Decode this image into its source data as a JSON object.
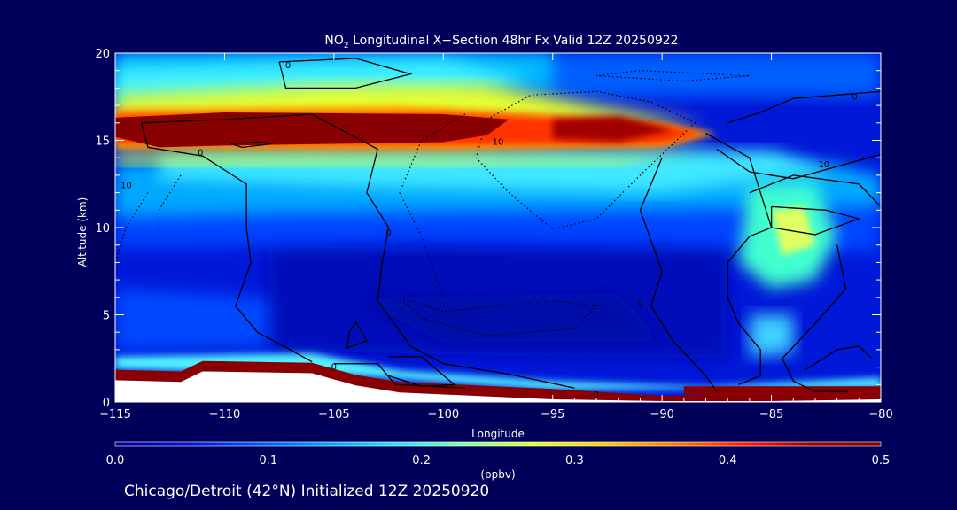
{
  "chart_data": {
    "type": "heatmap",
    "title_prefix": "NO",
    "title_sub": "2",
    "title_rest": " Longitudinal X−Section 48hr  Fx Valid 12Z 20250922",
    "subtitle": "Chicago/Detroit (42°N) Initialized 12Z 20250920",
    "xlabel": "Longitude",
    "ylabel": "Altitude (km)",
    "xlim": [
      -115,
      -80
    ],
    "ylim": [
      0,
      20
    ],
    "x_ticks": [
      -115,
      -110,
      -105,
      -100,
      -95,
      -90,
      -85,
      -80
    ],
    "x_tick_labels": [
      "−115",
      "−110",
      "−105",
      "−100",
      "−95",
      "−90",
      "−85",
      "−80"
    ],
    "y_ticks": [
      0,
      5,
      10,
      15,
      20
    ],
    "y_tick_labels": [
      "0",
      "5",
      "10",
      "15",
      "20"
    ],
    "colorbar": {
      "label": "(ppbv)",
      "range": [
        0.0,
        0.5
      ],
      "ticks": [
        0.0,
        0.1,
        0.2,
        0.3,
        0.4,
        0.5
      ],
      "tick_labels": [
        "0.0",
        "0.1",
        "0.2",
        "0.3",
        "0.4",
        "0.5"
      ],
      "colors": [
        "#000090",
        "#0010d8",
        "#0050ff",
        "#00a0ff",
        "#20e0ff",
        "#80ffa0",
        "#e0ff30",
        "#ffd000",
        "#ff8000",
        "#ff2000",
        "#a00000",
        "#800000"
      ]
    },
    "field": {
      "surface_km": [
        [
          -115,
          1.7
        ],
        [
          -112,
          1.6
        ],
        [
          -111,
          2.2
        ],
        [
          -106,
          2.1
        ],
        [
          -104,
          1.4
        ],
        [
          -102,
          1.0
        ],
        [
          -95,
          0.6
        ],
        [
          -90,
          0.2
        ],
        [
          -85,
          0.4
        ],
        [
          -80,
          0.6
        ]
      ],
      "stratospheric_band": {
        "center_km": 15.2,
        "peak_ppbv": 0.5
      },
      "notes_visible_max": "0.5"
    },
    "contour_labels": [
      {
        "text": "0",
        "lon": -111.1,
        "alt": 14.3
      },
      {
        "text": "10",
        "lon": -114.5,
        "alt": 12.4
      },
      {
        "text": "10",
        "lon": -97.5,
        "alt": 14.9
      },
      {
        "text": "0",
        "lon": -107.1,
        "alt": 19.3
      },
      {
        "text": "0",
        "lon": -102.5,
        "alt": 9.7
      },
      {
        "text": "0",
        "lon": -91.0,
        "alt": 5.6
      },
      {
        "text": "0",
        "lon": -93.0,
        "alt": 0.4
      },
      {
        "text": "0",
        "lon": -81.2,
        "alt": 17.5
      },
      {
        "text": "10",
        "lon": -82.6,
        "alt": 13.6
      },
      {
        "text": "0",
        "lon": -105.0,
        "alt": 2.0
      }
    ],
    "grid": false,
    "legend": "colorbar-bottom"
  }
}
